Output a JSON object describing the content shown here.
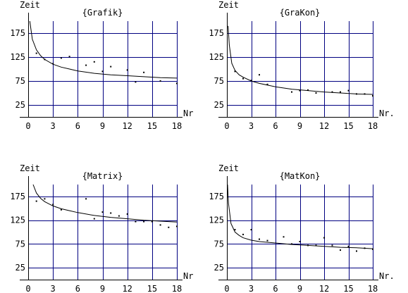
{
  "colors": {
    "grid": "#000080",
    "axis": "#000000",
    "curve": "#000000",
    "point": "#000000",
    "background": "#ffffff"
  },
  "chart_data": [
    {
      "type": "scatter",
      "title": "{Grafik}",
      "ylabel": "Zeit",
      "xlabel": "Nr",
      "xlim": [
        0,
        18
      ],
      "ylim": [
        0,
        200
      ],
      "xticks": [
        "0",
        "3",
        "6",
        "9",
        "12",
        "15",
        "18"
      ],
      "yticks": [
        "25",
        "75",
        "125",
        "175"
      ],
      "grid": true,
      "points": [
        {
          "x": 1,
          "y": 133
        },
        {
          "x": 2,
          "y": 120
        },
        {
          "x": 3,
          "y": 111
        },
        {
          "x": 4,
          "y": 123
        },
        {
          "x": 5,
          "y": 126
        },
        {
          "x": 7,
          "y": 108
        },
        {
          "x": 8,
          "y": 115
        },
        {
          "x": 9,
          "y": 95
        },
        {
          "x": 10,
          "y": 105
        },
        {
          "x": 12,
          "y": 98
        },
        {
          "x": 13,
          "y": 73
        },
        {
          "x": 14,
          "y": 93
        },
        {
          "x": 16,
          "y": 75
        },
        {
          "x": 18,
          "y": 70
        }
      ],
      "fit_curve": {
        "x": [
          0.2,
          0.5,
          1,
          1.5,
          2,
          3,
          4,
          5,
          6,
          8,
          10,
          12,
          14,
          16,
          18
        ],
        "y": [
          200,
          162,
          140,
          128,
          120,
          110,
          104,
          100,
          96,
          91,
          88,
          86,
          84,
          82,
          81
        ]
      }
    },
    {
      "type": "scatter",
      "title": "{GraKon}",
      "ylabel": "Zeit",
      "xlabel": "Nr.",
      "xlim": [
        0,
        18
      ],
      "ylim": [
        0,
        200
      ],
      "xticks": [
        "0",
        "3",
        "6",
        "9",
        "12",
        "15",
        "18"
      ],
      "yticks": [
        "25",
        "75",
        "125",
        "175"
      ],
      "grid": true,
      "points": [
        {
          "x": 1,
          "y": 95
        },
        {
          "x": 2,
          "y": 80
        },
        {
          "x": 3,
          "y": 76
        },
        {
          "x": 4,
          "y": 88
        },
        {
          "x": 5,
          "y": 68
        },
        {
          "x": 8,
          "y": 52
        },
        {
          "x": 9,
          "y": 55
        },
        {
          "x": 10,
          "y": 56
        },
        {
          "x": 11,
          "y": 50
        },
        {
          "x": 13,
          "y": 52
        },
        {
          "x": 14,
          "y": 52
        },
        {
          "x": 15,
          "y": 55
        },
        {
          "x": 16,
          "y": 48
        },
        {
          "x": 17,
          "y": 48
        },
        {
          "x": 18,
          "y": 44
        }
      ],
      "fit_curve": {
        "x": [
          0.15,
          0.3,
          0.6,
          1,
          1.5,
          2,
          3,
          4,
          6,
          8,
          10,
          12,
          14,
          16,
          18
        ],
        "y": [
          190,
          150,
          112,
          97,
          88,
          83,
          75,
          70,
          63,
          58,
          55,
          52,
          50,
          48,
          47
        ]
      }
    },
    {
      "type": "scatter",
      "title": "{Matrix}",
      "ylabel": "Zeit",
      "xlabel": "Nr",
      "xlim": [
        0,
        18
      ],
      "ylim": [
        0,
        200
      ],
      "xticks": [
        "0",
        "3",
        "6",
        "9",
        "12",
        "15",
        "18"
      ],
      "yticks": [
        "25",
        "75",
        "125",
        "175"
      ],
      "grid": true,
      "points": [
        {
          "x": 1,
          "y": 165
        },
        {
          "x": 2,
          "y": 170
        },
        {
          "x": 3,
          "y": 158
        },
        {
          "x": 4,
          "y": 147
        },
        {
          "x": 7,
          "y": 170
        },
        {
          "x": 8,
          "y": 128
        },
        {
          "x": 9,
          "y": 142
        },
        {
          "x": 10,
          "y": 140
        },
        {
          "x": 11,
          "y": 134
        },
        {
          "x": 12,
          "y": 138
        },
        {
          "x": 13,
          "y": 122
        },
        {
          "x": 14,
          "y": 122
        },
        {
          "x": 15,
          "y": 122
        },
        {
          "x": 16,
          "y": 115
        },
        {
          "x": 17,
          "y": 110
        },
        {
          "x": 18,
          "y": 112
        }
      ],
      "fit_curve": {
        "x": [
          0.6,
          1,
          1.5,
          2,
          3,
          4,
          5,
          6,
          8,
          10,
          12,
          14,
          16,
          18
        ],
        "y": [
          200,
          182,
          171,
          164,
          155,
          149,
          145,
          141,
          135,
          131,
          128,
          125,
          123,
          121
        ]
      }
    },
    {
      "type": "scatter",
      "title": "{MatKon}",
      "ylabel": "Zeit",
      "xlabel": "Nr.",
      "xlim": [
        0,
        18
      ],
      "ylim": [
        0,
        200
      ],
      "xticks": [
        "0",
        "3",
        "6",
        "9",
        "12",
        "15",
        "18"
      ],
      "yticks": [
        "25",
        "75",
        "125",
        "175"
      ],
      "grid": true,
      "points": [
        {
          "x": 1,
          "y": 105
        },
        {
          "x": 2,
          "y": 95
        },
        {
          "x": 3,
          "y": 105
        },
        {
          "x": 4,
          "y": 85
        },
        {
          "x": 5,
          "y": 82
        },
        {
          "x": 7,
          "y": 90
        },
        {
          "x": 8,
          "y": 75
        },
        {
          "x": 9,
          "y": 80
        },
        {
          "x": 10,
          "y": 72
        },
        {
          "x": 11,
          "y": 72
        },
        {
          "x": 12,
          "y": 88
        },
        {
          "x": 13,
          "y": 72
        },
        {
          "x": 14,
          "y": 62
        },
        {
          "x": 15,
          "y": 70
        },
        {
          "x": 16,
          "y": 60
        },
        {
          "x": 17,
          "y": 66
        },
        {
          "x": 18,
          "y": 64
        }
      ],
      "fit_curve": {
        "x": [
          0.08,
          0.2,
          0.5,
          1,
          1.5,
          2,
          3,
          4,
          6,
          8,
          10,
          12,
          14,
          16,
          18
        ],
        "y": [
          200,
          160,
          118,
          100,
          93,
          88,
          83,
          80,
          77,
          74,
          72,
          70,
          68,
          67,
          65
        ]
      }
    }
  ]
}
